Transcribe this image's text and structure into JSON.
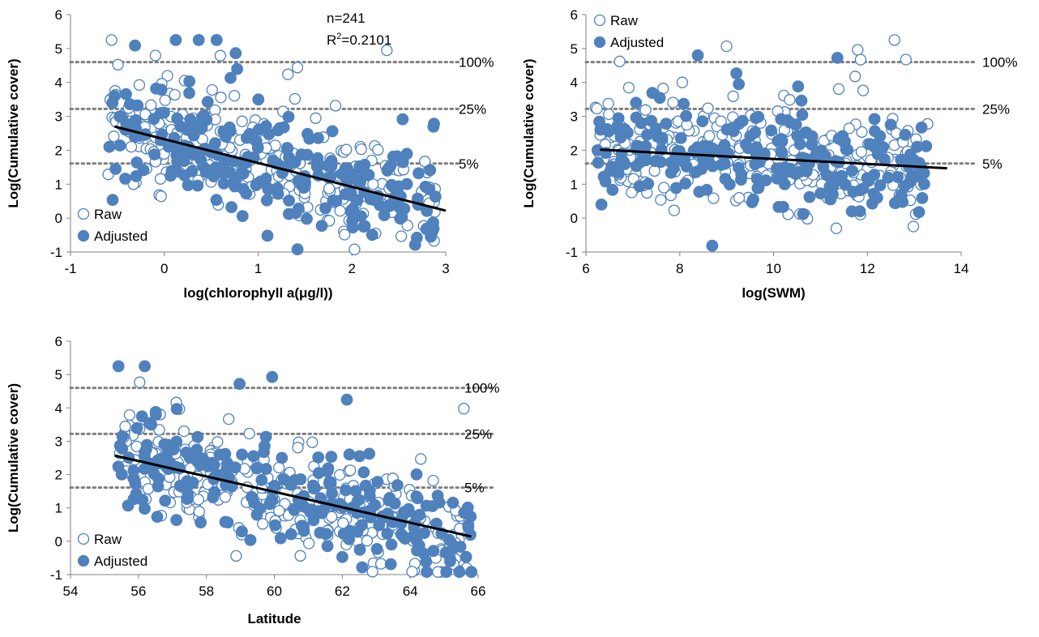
{
  "colors": {
    "marker": "#4f81bd",
    "trend": "#000000",
    "refline": "#7f7f7f",
    "axis": "#808080"
  },
  "chart_data": [
    {
      "type": "scatter",
      "id": "chl",
      "xlabel": "log(chlorophyll a(μg/l))",
      "ylabel": "Log(Cumulative cover)",
      "xlim": [
        -1,
        3
      ],
      "ylim": [
        -1,
        6
      ],
      "xticks": [
        -1,
        0,
        1,
        2,
        3
      ],
      "yticks": [
        -1,
        0,
        1,
        2,
        3,
        4,
        5,
        6
      ],
      "legend_position": "bottom-left",
      "annotations": [
        "n=241",
        "R2=0.2101"
      ],
      "reference_lines": [
        {
          "label": "100%",
          "y": 4.6
        },
        {
          "label": "25%",
          "y": 3.22
        },
        {
          "label": "5%",
          "y": 1.61
        }
      ],
      "trend": [
        [
          -0.53,
          2.7
        ],
        [
          3.0,
          0.22
        ]
      ],
      "series": [
        {
          "name": "Raw",
          "marker": "open-circle",
          "seed": 11,
          "n": 241,
          "x_range": [
            -0.6,
            2.9
          ],
          "slope": -0.7,
          "intercept": 2.33,
          "noise": 0.75
        },
        {
          "name": "Adjusted",
          "marker": "filled-circle",
          "seed": 29,
          "n": 241,
          "x_range": [
            -0.6,
            2.9
          ],
          "slope": -0.7,
          "intercept": 2.33,
          "noise": 0.75
        }
      ]
    },
    {
      "type": "scatter",
      "id": "swm",
      "xlabel": "log(SWM)",
      "ylabel": "Log(Cumulative cover)",
      "xlim": [
        6,
        14
      ],
      "ylim": [
        -1,
        6
      ],
      "xticks": [
        6,
        8,
        10,
        12,
        14
      ],
      "yticks": [
        -1,
        0,
        1,
        2,
        3,
        4,
        5,
        6
      ],
      "legend_position": "top-left",
      "reference_lines": [
        {
          "label": "100%",
          "y": 4.6
        },
        {
          "label": "25%",
          "y": 3.22
        },
        {
          "label": "5%",
          "y": 1.61
        }
      ],
      "trend": [
        [
          6.3,
          2.02
        ],
        [
          13.7,
          1.47
        ]
      ],
      "series": [
        {
          "name": "Raw",
          "marker": "open-circle",
          "seed": 47,
          "n": 241,
          "x_range": [
            6.2,
            13.3
          ],
          "slope": -0.074,
          "intercept": 2.49,
          "noise": 0.75
        },
        {
          "name": "Adjusted",
          "marker": "filled-circle",
          "seed": 83,
          "n": 241,
          "x_range": [
            6.2,
            13.3
          ],
          "slope": -0.074,
          "intercept": 2.49,
          "noise": 0.75
        }
      ]
    },
    {
      "type": "scatter",
      "id": "lat",
      "xlabel": "Latitude",
      "ylabel": "Log(Cumulative cover)",
      "xlim": [
        54,
        66
      ],
      "ylim": [
        -1,
        6
      ],
      "xticks": [
        54,
        56,
        58,
        60,
        62,
        64,
        66
      ],
      "yticks": [
        -1,
        0,
        1,
        2,
        3,
        4,
        5,
        6
      ],
      "legend_position": "bottom-left",
      "reference_lines": [
        {
          "label": "100%",
          "y": 4.6
        },
        {
          "label": "25%",
          "y": 3.22
        },
        {
          "label": "5%",
          "y": 1.61
        }
      ],
      "trend": [
        [
          55.3,
          2.57
        ],
        [
          65.8,
          0.14
        ]
      ],
      "series": [
        {
          "name": "Raw",
          "marker": "open-circle",
          "seed": 101,
          "n": 241,
          "x_range": [
            55.4,
            65.8
          ],
          "slope": -0.231,
          "intercept": 15.35,
          "noise": 0.75
        },
        {
          "name": "Adjusted",
          "marker": "filled-circle",
          "seed": 137,
          "n": 241,
          "x_range": [
            55.4,
            65.8
          ],
          "slope": -0.231,
          "intercept": 15.35,
          "noise": 0.75
        }
      ]
    }
  ]
}
